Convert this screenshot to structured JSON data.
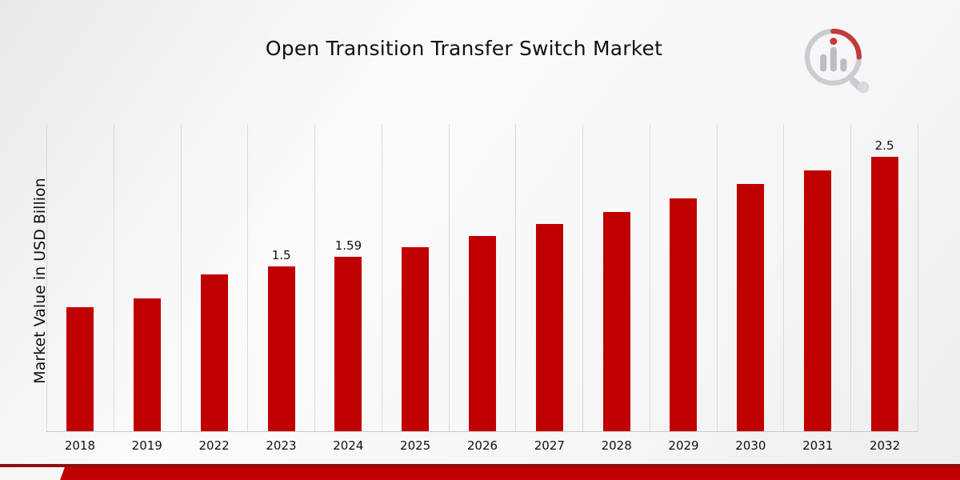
{
  "title": "Open Transition Transfer Switch Market",
  "ylabel": "Market Value in USD Billion",
  "chart_data": {
    "type": "bar",
    "title": "Open Transition Transfer Switch Market",
    "xlabel": "",
    "ylabel": "Market Value in USD Billion",
    "categories": [
      "2018",
      "2019",
      "2022",
      "2023",
      "2024",
      "2025",
      "2026",
      "2027",
      "2028",
      "2029",
      "2030",
      "2031",
      "2032"
    ],
    "values": [
      1.13,
      1.21,
      1.43,
      1.5,
      1.59,
      1.68,
      1.78,
      1.89,
      2.0,
      2.12,
      2.25,
      2.38,
      2.5
    ],
    "data_labels": [
      "",
      "",
      "",
      "1.5",
      "1.59",
      "",
      "",
      "",
      "",
      "",
      "",
      "",
      "2.5"
    ],
    "ylim": [
      0,
      2.8
    ],
    "grid": "vertical-only",
    "legend": "none",
    "bar_color": "#c00000"
  },
  "colors": {
    "bar": "#c00000",
    "footer_line": "#8b0f0f",
    "footer_band": "#c00000",
    "gridline": "#dadada",
    "text": "#111111"
  },
  "logo": {
    "name": "market-research-future-logo",
    "ring_color": "#c9ccd1",
    "accent_color": "#c33a3a",
    "bars_color": "#b9bec6"
  }
}
